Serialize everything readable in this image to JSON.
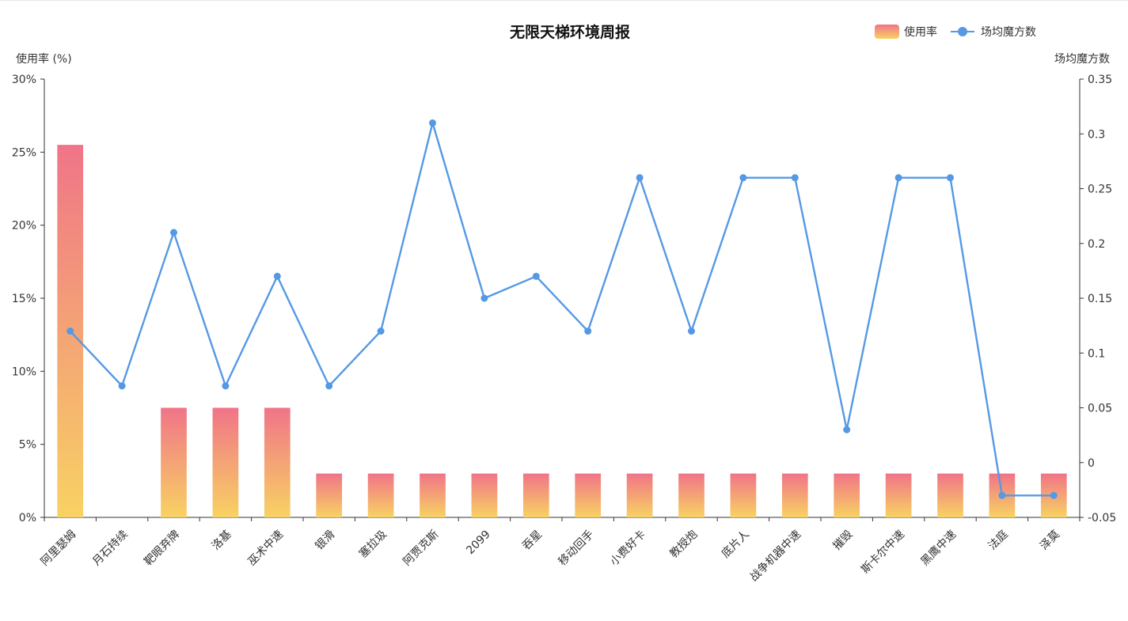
{
  "chart_data": {
    "type": "bar",
    "title": "无限天梯环境周报",
    "categories": [
      "阿里瑟姆",
      "月石持续",
      "靶眼弃牌",
      "洛基",
      "巫术中速",
      "银滑",
      "塞拉圾",
      "阿贾克斯",
      "2099",
      "吞星",
      "移动回手",
      "小费好卡",
      "教授炮",
      "底片人",
      "战争机器中速",
      "摧毁",
      "斯卡尔中速",
      "黑鹰中速",
      "法庭",
      "泽莫"
    ],
    "series": [
      {
        "name": "使用率",
        "type": "bar",
        "axis": "left",
        "values": [
          25.5,
          0,
          7.5,
          7.5,
          7.5,
          3,
          3,
          3,
          3,
          3,
          3,
          3,
          3,
          3,
          3,
          3,
          3,
          3,
          3,
          3
        ],
        "gradient": [
          "#f07488",
          "#f8d263"
        ]
      },
      {
        "name": "场均魔方数",
        "type": "line",
        "axis": "right",
        "values": [
          0.12,
          0.07,
          0.21,
          0.07,
          0.17,
          0.07,
          0.12,
          0.31,
          0.15,
          0.17,
          0.12,
          0.26,
          0.12,
          0.26,
          0.26,
          0.03,
          0.26,
          0.26,
          -0.03,
          -0.03
        ],
        "color": "#5599e5"
      }
    ],
    "y_left": {
      "label": "使用率 (%)",
      "range": [
        0,
        30
      ],
      "ticks": [
        0,
        5,
        10,
        15,
        20,
        25,
        30
      ],
      "tick_labels": [
        "0%",
        "5%",
        "10%",
        "15%",
        "20%",
        "25%",
        "30%"
      ]
    },
    "y_right": {
      "label": "场均魔方数",
      "range": [
        -0.05,
        0.35
      ],
      "ticks": [
        -0.05,
        0,
        0.05,
        0.1,
        0.15,
        0.2,
        0.25,
        0.3,
        0.35
      ],
      "tick_labels": [
        "-0.05",
        "0",
        "0.05",
        "0.1",
        "0.15",
        "0.2",
        "0.25",
        "0.3",
        "0.35"
      ]
    },
    "grid": false,
    "legend_position": "top-right",
    "axis_color": "#333333"
  }
}
